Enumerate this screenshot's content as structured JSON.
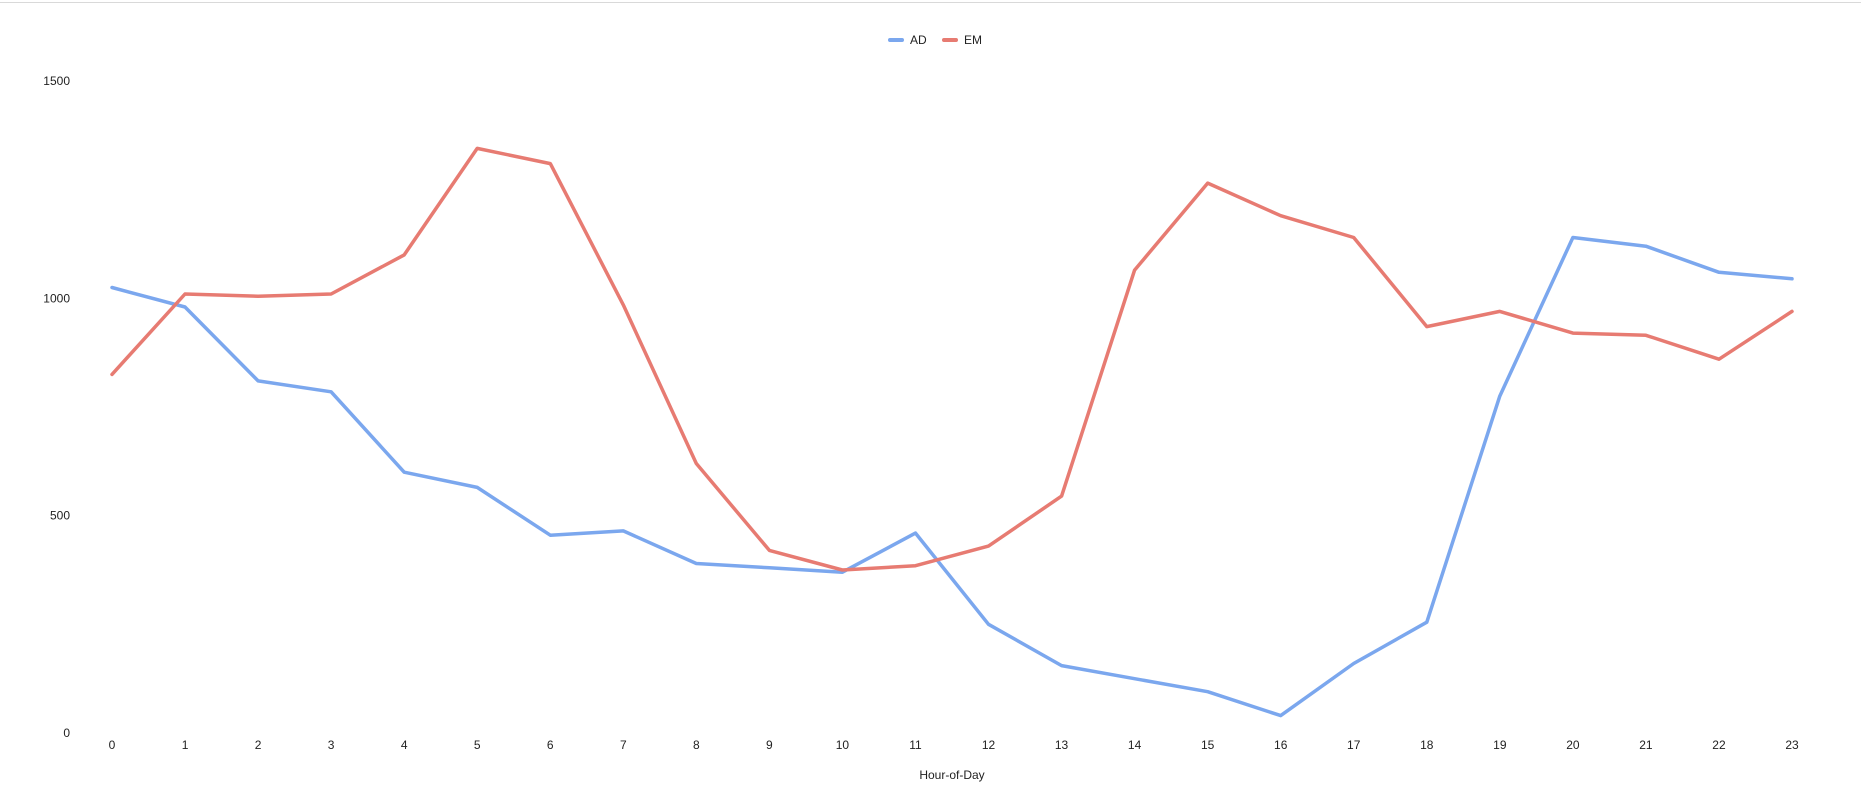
{
  "chart_data": {
    "type": "line",
    "title": "",
    "xlabel": "Hour-of-Day",
    "ylabel": "",
    "x": [
      0,
      1,
      2,
      3,
      4,
      5,
      6,
      7,
      8,
      9,
      10,
      11,
      12,
      13,
      14,
      15,
      16,
      17,
      18,
      19,
      20,
      21,
      22,
      23
    ],
    "x_tick_labels": [
      "0",
      "1",
      "2",
      "3",
      "4",
      "5",
      "6",
      "7",
      "8",
      "9",
      "10",
      "11",
      "12",
      "13",
      "14",
      "15",
      "16",
      "17",
      "18",
      "19",
      "20",
      "21",
      "22",
      "23"
    ],
    "ylim": [
      0,
      1500
    ],
    "y_ticks": [
      0,
      500,
      1000,
      1500
    ],
    "grid": false,
    "legend_position": "top-center",
    "series": [
      {
        "name": "AD",
        "color": "#7BA7EE",
        "values": [
          1025,
          980,
          810,
          785,
          600,
          565,
          455,
          465,
          390,
          380,
          370,
          460,
          250,
          155,
          125,
          95,
          40,
          160,
          255,
          775,
          1140,
          1120,
          1060,
          1045
        ]
      },
      {
        "name": "EM",
        "color": "#E77B72",
        "values": [
          825,
          1010,
          1005,
          1010,
          1100,
          1345,
          1310,
          985,
          620,
          420,
          375,
          385,
          430,
          545,
          1065,
          1265,
          1190,
          1140,
          935,
          970,
          920,
          915,
          860,
          970
        ]
      }
    ]
  }
}
